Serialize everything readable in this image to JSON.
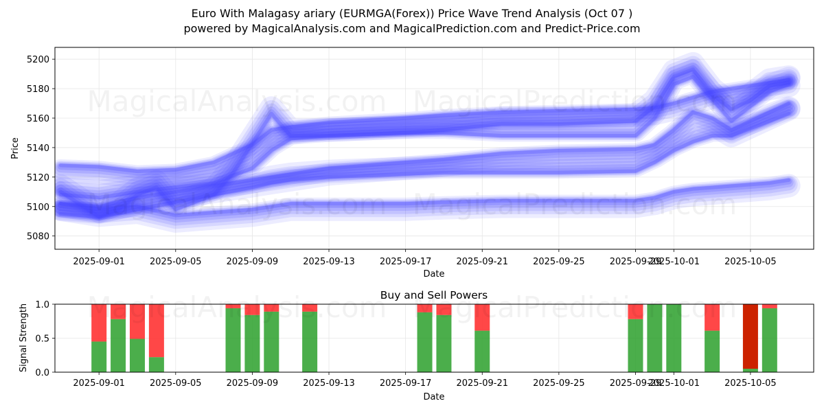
{
  "title": {
    "line1": "Euro With Malagasy ariary (EURMGA(Forex)) Price Wave Trend Analysis (Oct 07 )",
    "line2": "powered by MagicalAnalysis.com and MagicalPrediction.com and Predict-Price.com"
  },
  "watermarks": [
    "MagicalAnalysis.com",
    "MagicalPrediction.com"
  ],
  "colors": {
    "wave": "#4444ff",
    "buy": "#2ca02c",
    "sell": "#ff3333",
    "sell_dark": "#cc2200"
  },
  "chart_data": [
    {
      "type": "area",
      "title": "",
      "xlabel": "Date",
      "ylabel": "Price",
      "x_tick_labels": [
        "2025-09-01",
        "2025-09-05",
        "2025-09-09",
        "2025-09-13",
        "2025-09-17",
        "2025-09-21",
        "2025-09-25",
        "2025-09-29",
        "2025-10-01",
        "2025-10-05"
      ],
      "y_tick_labels": [
        "5080",
        "5100",
        "5120",
        "5140",
        "5160",
        "5180",
        "5200"
      ],
      "x_day_index_range": [
        -2.3,
        37.3
      ],
      "ylim": [
        5071,
        5208
      ],
      "grid": true,
      "series": [
        {
          "name": "band-upper-1",
          "x": [
            -2,
            0,
            2,
            4,
            6,
            8,
            9,
            10,
            12,
            16,
            18,
            21,
            24,
            28,
            29,
            30,
            31,
            32,
            33,
            34,
            35,
            36
          ],
          "y": [
            5126,
            5125,
            5122,
            5123,
            5128,
            5140,
            5150,
            5152,
            5155,
            5158,
            5160,
            5162,
            5163,
            5164,
            5165,
            5168,
            5172,
            5176,
            5178,
            5180,
            5182,
            5184
          ]
        },
        {
          "name": "band-upper-2",
          "x": [
            -2,
            0,
            2,
            4,
            6,
            8,
            9,
            10,
            12,
            16,
            18,
            21,
            24,
            28,
            29,
            30,
            31,
            32,
            33,
            34,
            35,
            36
          ],
          "y": [
            5110,
            5108,
            5112,
            5115,
            5118,
            5128,
            5140,
            5148,
            5150,
            5152,
            5152,
            5150,
            5150,
            5150,
            5162,
            5185,
            5190,
            5175,
            5160,
            5170,
            5180,
            5185
          ]
        },
        {
          "name": "band-mid-1",
          "x": [
            -2,
            0,
            2,
            4,
            6,
            8,
            9,
            10,
            12,
            16,
            18,
            21,
            24,
            28,
            29,
            30,
            31,
            32,
            33,
            34,
            35,
            36
          ],
          "y": [
            5100,
            5098,
            5104,
            5108,
            5112,
            5116,
            5118,
            5120,
            5124,
            5128,
            5130,
            5134,
            5136,
            5137,
            5140,
            5150,
            5162,
            5158,
            5150,
            5156,
            5162,
            5168
          ]
        },
        {
          "name": "band-mid-2",
          "x": [
            -2,
            0,
            2,
            4,
            6,
            8,
            9,
            10,
            12,
            16,
            18,
            21,
            24,
            28,
            29,
            30,
            31,
            32,
            33,
            34,
            35,
            36
          ],
          "y": [
            5112,
            5095,
            5100,
            5105,
            5110,
            5115,
            5118,
            5120,
            5122,
            5124,
            5125,
            5125,
            5125,
            5126,
            5132,
            5140,
            5146,
            5150,
            5150,
            5155,
            5160,
            5165
          ]
        },
        {
          "name": "band-lower-1",
          "x": [
            -2,
            0,
            2,
            4,
            6,
            8,
            9,
            10,
            12,
            16,
            18,
            21,
            24,
            28,
            29,
            30,
            31,
            32,
            33,
            34,
            35,
            36
          ],
          "y": [
            5100,
            5096,
            5098,
            5092,
            5094,
            5096,
            5098,
            5100,
            5100,
            5100,
            5101,
            5102,
            5102,
            5102,
            5104,
            5108,
            5110,
            5111,
            5112,
            5113,
            5114,
            5116
          ]
        },
        {
          "name": "wave-spike",
          "x": [
            -2,
            0,
            1,
            2,
            3,
            4,
            6,
            7,
            8,
            9,
            10,
            12,
            16,
            18,
            21,
            24,
            28,
            29,
            30,
            31,
            32,
            33,
            34,
            35,
            36
          ],
          "y": [
            5097,
            5095,
            5100,
            5110,
            5115,
            5100,
            5110,
            5125,
            5145,
            5165,
            5150,
            5150,
            5152,
            5154,
            5158,
            5158,
            5160,
            5170,
            5190,
            5195,
            5178,
            5168,
            5174,
            5184,
            5186
          ]
        }
      ]
    },
    {
      "type": "bar",
      "title": "Buy and Sell Powers",
      "xlabel": "Date",
      "ylabel": "Signal Strength",
      "ylim": [
        0,
        1.0
      ],
      "y_tick_labels": [
        "0.0",
        "0.5",
        "1.0"
      ],
      "x_tick_labels": [
        "2025-09-01",
        "2025-09-05",
        "2025-09-09",
        "2025-09-13",
        "2025-09-17",
        "2025-09-21",
        "2025-09-25",
        "2025-09-29",
        "2025-10-01",
        "2025-10-05"
      ],
      "bars": [
        {
          "day": 0,
          "buy": 0.45
        },
        {
          "day": 1,
          "buy": 0.78
        },
        {
          "day": 2,
          "buy": 0.49
        },
        {
          "day": 3,
          "buy": 0.22
        },
        {
          "day": 7,
          "buy": 0.94
        },
        {
          "day": 8,
          "buy": 0.84
        },
        {
          "day": 9,
          "buy": 0.89
        },
        {
          "day": 11,
          "buy": 0.89
        },
        {
          "day": 17,
          "buy": 0.88
        },
        {
          "day": 18,
          "buy": 0.84
        },
        {
          "day": 20,
          "buy": 0.61
        },
        {
          "day": 28,
          "buy": 0.78
        },
        {
          "day": 29,
          "buy": 1.0
        },
        {
          "day": 30,
          "buy": 1.0
        },
        {
          "day": 32,
          "buy": 0.61
        },
        {
          "day": 34,
          "buy": 0.05,
          "dark": true
        },
        {
          "day": 35,
          "buy": 0.94
        }
      ]
    }
  ]
}
